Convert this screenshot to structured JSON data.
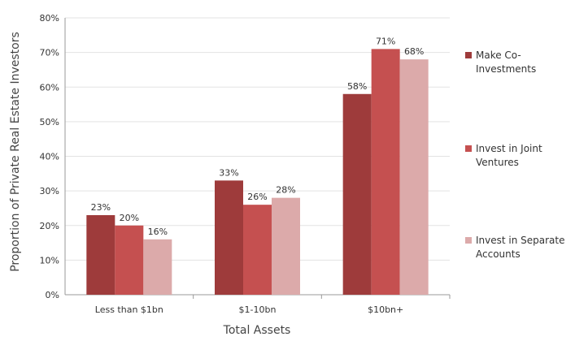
{
  "chart_data": {
    "type": "bar",
    "title": "",
    "xlabel": "Total Assets",
    "ylabel": "Proportion of Private Real Estate Investors",
    "categories": [
      "Less than $1bn",
      "$1-10bn",
      "$10bn+"
    ],
    "ylim": [
      0,
      80
    ],
    "ytick_labels": [
      "0%",
      "10%",
      "20%",
      "30%",
      "40%",
      "50%",
      "60%",
      "70%",
      "80%"
    ],
    "grid": true,
    "legend_position": "right",
    "series": [
      {
        "name": "Make Co-Investments",
        "legend_lines": [
          "Make Co-",
          "Investments"
        ],
        "values": [
          23,
          33,
          58
        ],
        "labels": [
          "23%",
          "33%",
          "58%"
        ],
        "color": "#9e3b3b"
      },
      {
        "name": "Invest in Joint Ventures",
        "legend_lines": [
          "Invest in Joint",
          "Ventures"
        ],
        "values": [
          20,
          26,
          71
        ],
        "labels": [
          "20%",
          "26%",
          "71%"
        ],
        "color": "#c55050"
      },
      {
        "name": "Invest in Separate Accounts",
        "legend_lines": [
          "Invest in Separate",
          "Accounts"
        ],
        "values": [
          16,
          28,
          68
        ],
        "labels": [
          "16%",
          "28%",
          "68%"
        ],
        "color": "#dcaaaa"
      }
    ]
  }
}
